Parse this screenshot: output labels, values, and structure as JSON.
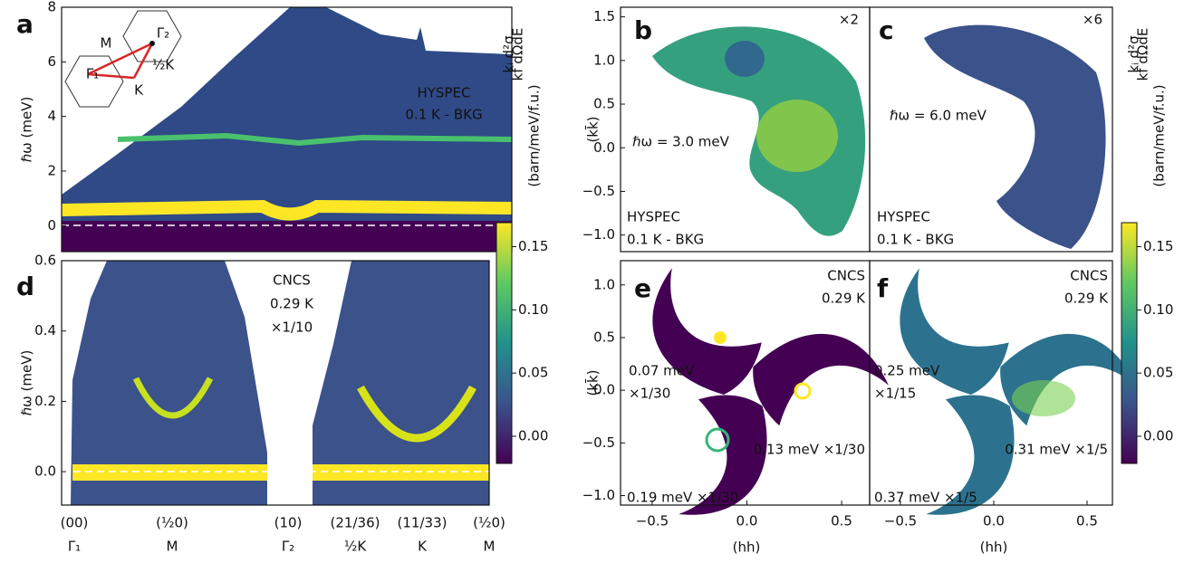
{
  "chart_data": [
    {
      "type": "heatmap",
      "panel": "a",
      "ylabel": "ℏω (meV)",
      "ylim": [
        -0.95,
        8
      ],
      "yticks": [
        0,
        2,
        4,
        6,
        8
      ],
      "annotations": [
        "HYSPEC",
        "0.1 K - BKG"
      ],
      "inset_labels": [
        "M",
        "Γ₂",
        "½K",
        "Γ₁",
        "K"
      ],
      "colorbar": {
        "lim": [
          -0.0215,
          0.169
        ],
        "ticks": [
          {
            "value": 0,
            "label": "0.00"
          },
          0.05,
          {
            "value": 0.1,
            "label": "0.10"
          },
          0.15
        ],
        "label": "(barn/meV/f.u.)",
        "formula": [
          "kᵢ  d²σ",
          "kf dΩdE"
        ]
      }
    },
    {
      "type": "heatmap",
      "panel": "b",
      "ylabel": "(kk̄)",
      "ylim": [
        -1.19,
        1.61
      ],
      "yticks": [
        {
          "value": -1,
          "label": "−1.0"
        },
        {
          "value": -0.5,
          "label": "−0.5"
        },
        {
          "value": 0,
          "label": "0.0"
        },
        0.5,
        {
          "value": 1,
          "label": "1.0"
        },
        1.5
      ],
      "annotations": [
        "×2",
        "ℏω = 3.0 meV",
        "HYSPEC",
        "0.1 K - BKG"
      ]
    },
    {
      "type": "heatmap",
      "panel": "c",
      "annotations": [
        "×6",
        "ℏω = 6.0 meV",
        "HYSPEC",
        "0.1 K - BKG"
      ],
      "colorbar": {
        "lim": [
          -0.0215,
          0.169
        ],
        "ticks": [
          {
            "value": 0,
            "label": "0.00"
          },
          0.05,
          {
            "value": 0.1,
            "label": "0.10"
          },
          0.15
        ],
        "label": "(barn/meV/f.u.)",
        "formula": [
          "kᵢ  d²σ",
          "kf dΩdE"
        ]
      }
    },
    {
      "type": "heatmap",
      "panel": "d",
      "ylabel": "ℏω (meV)",
      "ylim": [
        -0.095,
        0.6
      ],
      "yticks": [
        {
          "value": 0,
          "label": "0.0"
        },
        0.2,
        0.4,
        0.6
      ],
      "categories": [
        "(00)",
        "(½0)",
        "(10)",
        "(21/36)",
        "(11/33)",
        "(½0)"
      ],
      "subcategories": [
        "Γ₁",
        "M",
        "Γ₂",
        "½K",
        "K",
        "M"
      ],
      "annotations": [
        "CNCS",
        "0.29 K",
        "×1/10"
      ]
    },
    {
      "type": "heatmap",
      "panel": "e",
      "xlabel": "(hh)",
      "ylabel": "(kk̄)",
      "xlim": [
        -0.667,
        0.648
      ],
      "ylim": [
        -1.09,
        1.23
      ],
      "xticks": [
        {
          "value": -0.5,
          "label": "−0.5"
        },
        {
          "value": 0,
          "label": "0.0"
        },
        0.5
      ],
      "yticks": [
        {
          "value": -1,
          "label": "−1.0"
        },
        {
          "value": -0.5,
          "label": "−0.5"
        },
        {
          "value": 0,
          "label": "0.0"
        },
        0.5,
        {
          "value": 1,
          "label": "1.0"
        }
      ],
      "annotations": [
        "CNCS",
        "0.29 K",
        "0.07 meV",
        "×1/30",
        "0.13 meV ×1/30",
        "0.19 meV ×1/30"
      ]
    },
    {
      "type": "heatmap",
      "panel": "f",
      "xlabel": "(hh)",
      "xlim": [
        -0.665,
        0.636
      ],
      "xticks": [
        {
          "value": -0.5,
          "label": "−0.5"
        },
        {
          "value": 0,
          "label": "0.0"
        },
        0.5
      ],
      "annotations": [
        "CNCS",
        "0.29 K",
        "0.25 meV",
        "×1/15",
        "0.31 meV ×1/5",
        "0.37 meV ×1/5"
      ]
    }
  ]
}
